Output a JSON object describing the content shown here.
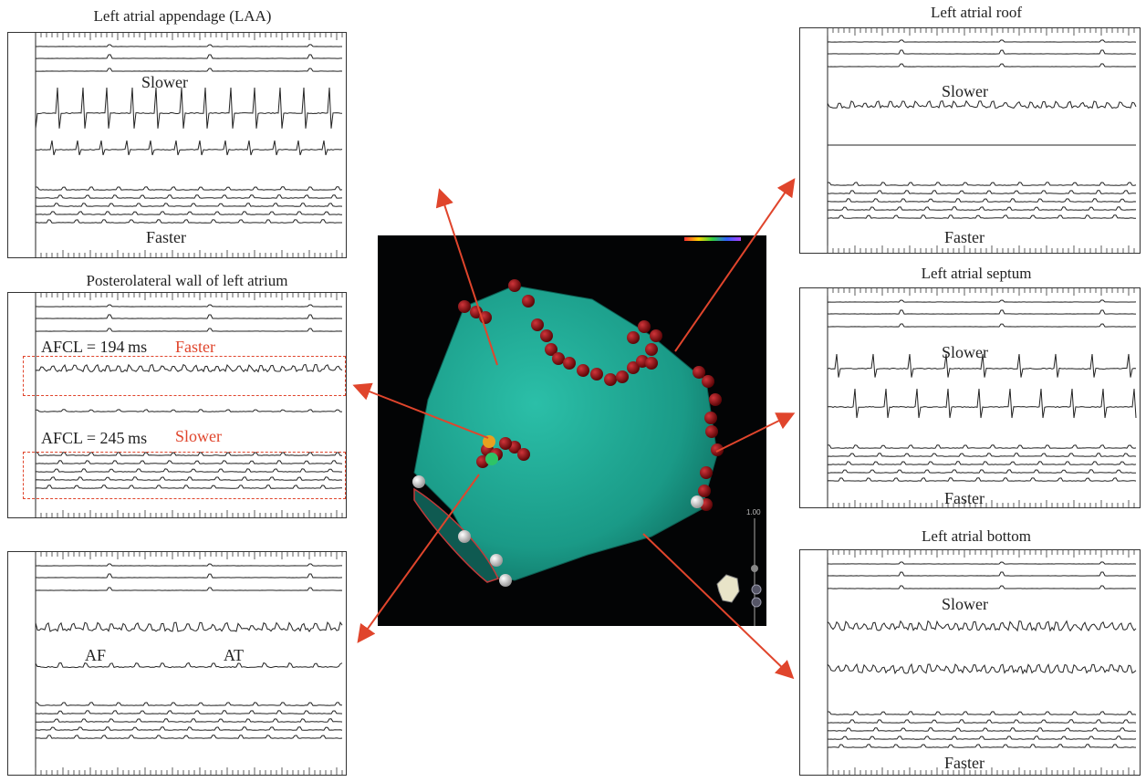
{
  "panels": {
    "laa": {
      "title": "Left atrial appendage (LAA)",
      "slower": "Slower",
      "faster": "Faster"
    },
    "posterolateral": {
      "title": "Posterolateral wall of left atrium",
      "afcl1": "AFCL = 194 ms",
      "faster": "Faster",
      "afcl2": "AFCL = 245 ms",
      "slower": "Slower"
    },
    "bottom_left": {
      "af": "AF",
      "at": "AT"
    },
    "roof": {
      "title": "Left atrial roof",
      "slower": "Slower",
      "faster": "Faster"
    },
    "septum": {
      "title": "Left atrial septum",
      "slower": "Slower",
      "faster": "Faster"
    },
    "bottom": {
      "title": "Left atrial bottom",
      "slower": "Slower",
      "faster": "Faster"
    }
  },
  "map": {
    "scale_label": "1.00"
  },
  "colors": {
    "arrow": "#e0452c",
    "atrium": "#1fa793",
    "ablation": "#8b0f12",
    "background": "#030405"
  }
}
